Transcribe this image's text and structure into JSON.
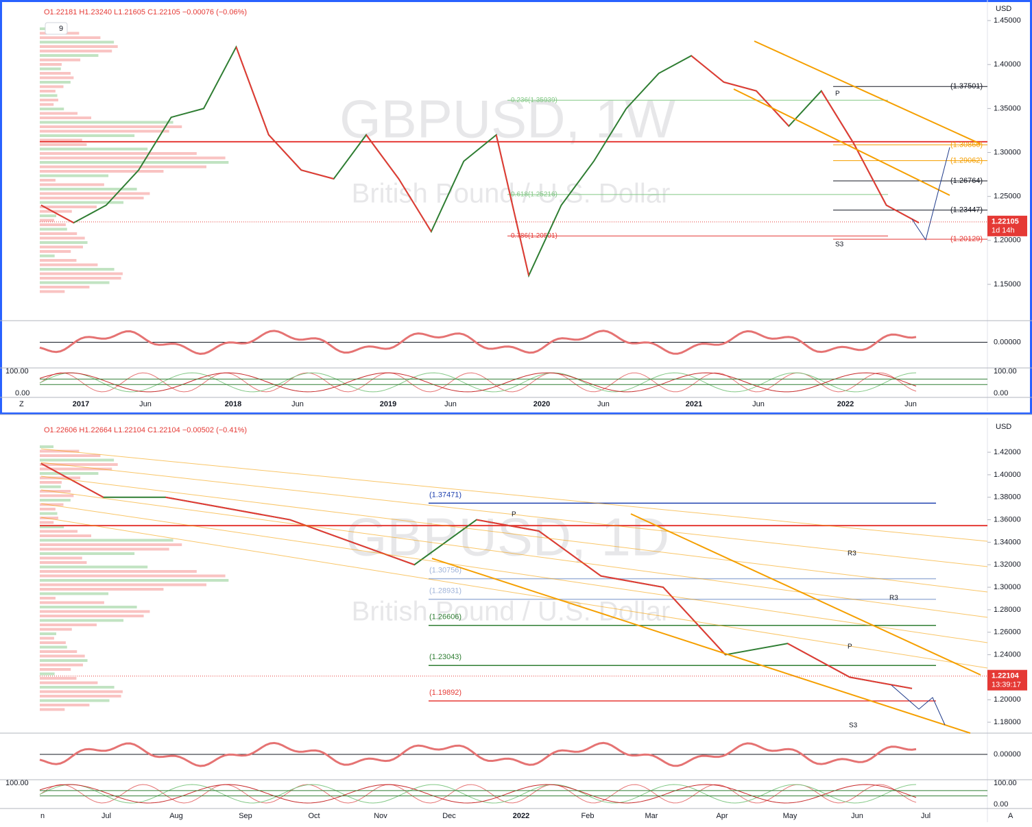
{
  "top": {
    "header": "O1.22181 H1.23240 L1.21605 C1.22105 −0.00076 (−0.06%)",
    "interval": "9",
    "currency": "USD",
    "symbol": "GBPUSD, 1W",
    "name": "British Pound / U.S. Dollar",
    "ylim": [
      1.1087,
      1.4734
    ],
    "yticks": [
      {
        "value": 1.45,
        "label": "1.45000"
      },
      {
        "value": 1.4,
        "label": "1.40000"
      },
      {
        "value": 1.35,
        "label": "1.35000"
      },
      {
        "value": 1.3,
        "label": "1.30000"
      },
      {
        "value": 1.25,
        "label": "1.25000"
      },
      {
        "value": 1.2,
        "label": "1.20000"
      },
      {
        "value": 1.15,
        "label": "1.15000"
      }
    ],
    "levels": [
      {
        "label": "(1.37501)",
        "value": 1.37501,
        "color": "#131722"
      },
      {
        "label": "(1.30866)",
        "value": 1.30866,
        "color": "#f59f00"
      },
      {
        "label": "(1.29062)",
        "value": 1.29062,
        "color": "#f59f00"
      },
      {
        "label": "(1.26764)",
        "value": 1.26764,
        "color": "#131722"
      },
      {
        "label": "(1.23447)",
        "value": 1.23447,
        "color": "#131722"
      },
      {
        "label": "(1.20129)",
        "value": 1.20129,
        "color": "#e53935"
      }
    ],
    "fib": [
      {
        "label": "0.236(1.35939)",
        "value": 1.35939
      },
      {
        "label": "0.618(1.25216)",
        "value": 1.25216
      },
      {
        "label": "0.786(1.20501)",
        "value": 1.20501
      }
    ],
    "pivots": [
      "P",
      "S3"
    ],
    "last_price": 1.22105,
    "countdown": "1d 14h",
    "months": [
      "2017",
      "Jun",
      "2018",
      "Jun",
      "2019",
      "Jun",
      "2020",
      "Jun",
      "2021",
      "Jun",
      "2022",
      "Jun"
    ],
    "closes": [
      1.24,
      1.22,
      1.24,
      1.28,
      1.34,
      1.35,
      1.42,
      1.32,
      1.28,
      1.27,
      1.32,
      1.27,
      1.21,
      1.29,
      1.32,
      1.16,
      1.24,
      1.29,
      1.35,
      1.39,
      1.41,
      1.38,
      1.37,
      1.33,
      1.37,
      1.31,
      1.24,
      1.22
    ],
    "osc_zero": "0.00000",
    "stoch_high": "100.00",
    "stoch_low": "0.00",
    "corner_left": "Z"
  },
  "bottom": {
    "header": "O1.22606 H1.22664 L1.22104 C1.22104 −0.00502 (−0.41%)",
    "currency": "USD",
    "symbol": "GBPUSD, 1D",
    "name": "British Pound / U.S. Dollar",
    "ylim": [
      1.1703,
      1.4505
    ],
    "yticks": [
      {
        "value": 1.42,
        "label": "1.42000"
      },
      {
        "value": 1.4,
        "label": "1.40000"
      },
      {
        "value": 1.38,
        "label": "1.38000"
      },
      {
        "value": 1.36,
        "label": "1.36000"
      },
      {
        "value": 1.34,
        "label": "1.34000"
      },
      {
        "value": 1.32,
        "label": "1.32000"
      },
      {
        "value": 1.3,
        "label": "1.30000"
      },
      {
        "value": 1.28,
        "label": "1.28000"
      },
      {
        "value": 1.26,
        "label": "1.26000"
      },
      {
        "value": 1.24,
        "label": "1.24000"
      },
      {
        "value": 1.22,
        "label": "1.22000"
      },
      {
        "value": 1.2,
        "label": "1.20000"
      },
      {
        "value": 1.18,
        "label": "1.18000"
      }
    ],
    "levels": [
      {
        "label": "(1.37471)",
        "value": 1.37471,
        "color": "#1e40af"
      },
      {
        "label": "(1.30756)",
        "value": 1.30756,
        "color": "#9fb3d9"
      },
      {
        "label": "(1.28931)",
        "value": 1.28931,
        "color": "#9fb3d9"
      },
      {
        "label": "(1.26606)",
        "value": 1.26606,
        "color": "#2e7d32"
      },
      {
        "label": "(1.23043)",
        "value": 1.23043,
        "color": "#2e7d32"
      },
      {
        "label": "(1.19892)",
        "value": 1.19892,
        "color": "#e53935"
      }
    ],
    "pivots": [
      "P",
      "R3",
      "R3",
      "P",
      "S3"
    ],
    "last_price": 1.22104,
    "countdown": "13:39:17",
    "months": [
      "n",
      "Jul",
      "Aug",
      "Sep",
      "Oct",
      "Nov",
      "Dec",
      "2022",
      "Feb",
      "Mar",
      "Apr",
      "May",
      "Jun",
      "Jul"
    ],
    "closes": [
      1.41,
      1.38,
      1.38,
      1.37,
      1.36,
      1.34,
      1.32,
      1.36,
      1.35,
      1.31,
      1.3,
      1.24,
      1.25,
      1.22,
      1.21
    ],
    "osc_zero": "0.00000",
    "stoch_high": "100.00",
    "stoch_low": "0.00",
    "corner_right": "A"
  }
}
